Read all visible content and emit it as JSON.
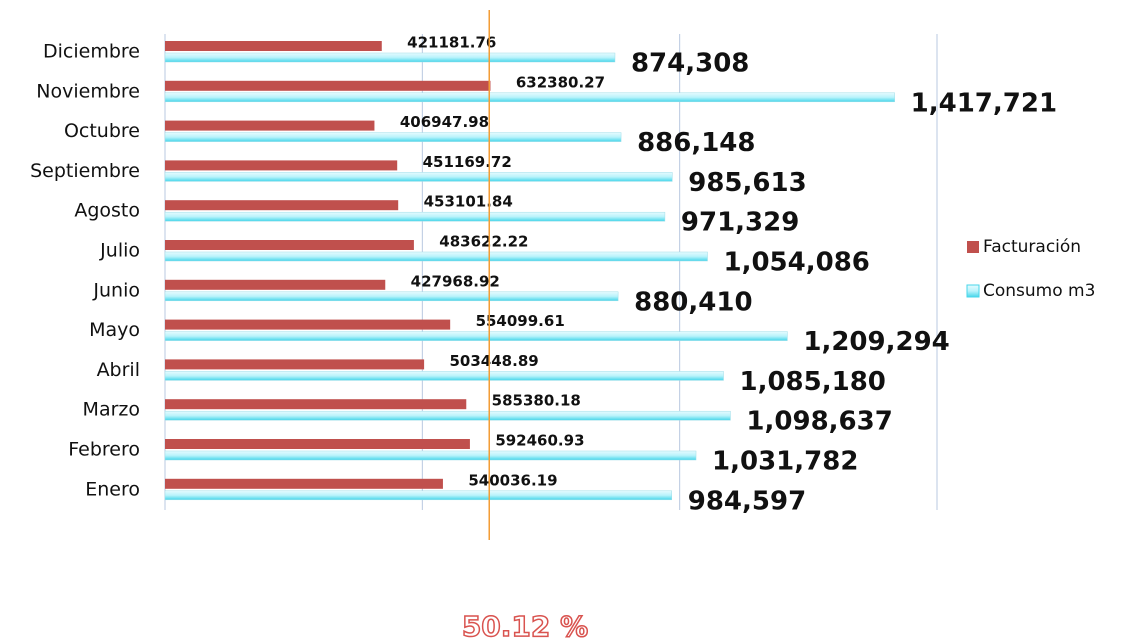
{
  "chart_data": {
    "type": "hbar",
    "categories": [
      "Diciembre",
      "Noviembre",
      "Octubre",
      "Septiembre",
      "Agosto",
      "Julio",
      "Junio",
      "Mayo",
      "Abril",
      "Marzo",
      "Febrero",
      "Enero"
    ],
    "series": [
      {
        "name": "Facturación",
        "color": "#c0504d",
        "values": [
          421181.76,
          632380.27,
          406947.98,
          451169.72,
          453101.84,
          483622.22,
          427968.92,
          554099.61,
          503448.89,
          585380.18,
          592460.93,
          540036.19
        ]
      },
      {
        "name": "Consumo m3",
        "color": "#5fe0f0",
        "values": [
          874308,
          1417721,
          886148,
          985613,
          971329,
          1054086,
          880410,
          1209294,
          1085180,
          1098637,
          1031782,
          984597
        ],
        "value_labels": [
          "874,308",
          "1,417,721",
          "886,148",
          "985,613",
          "971,329",
          "1,054,086",
          "880,410",
          "1,209,294",
          "1,085,180",
          "1,098,637",
          "1,031,782",
          "984,597"
        ]
      }
    ],
    "xlim": [
      0,
      1500000
    ],
    "xticks": [
      0,
      500000,
      1000000,
      1500000
    ],
    "grid": true,
    "reference_line": {
      "value": 630000,
      "color": "#f39c34"
    },
    "annotation": "50.12 %",
    "legend": "right"
  }
}
